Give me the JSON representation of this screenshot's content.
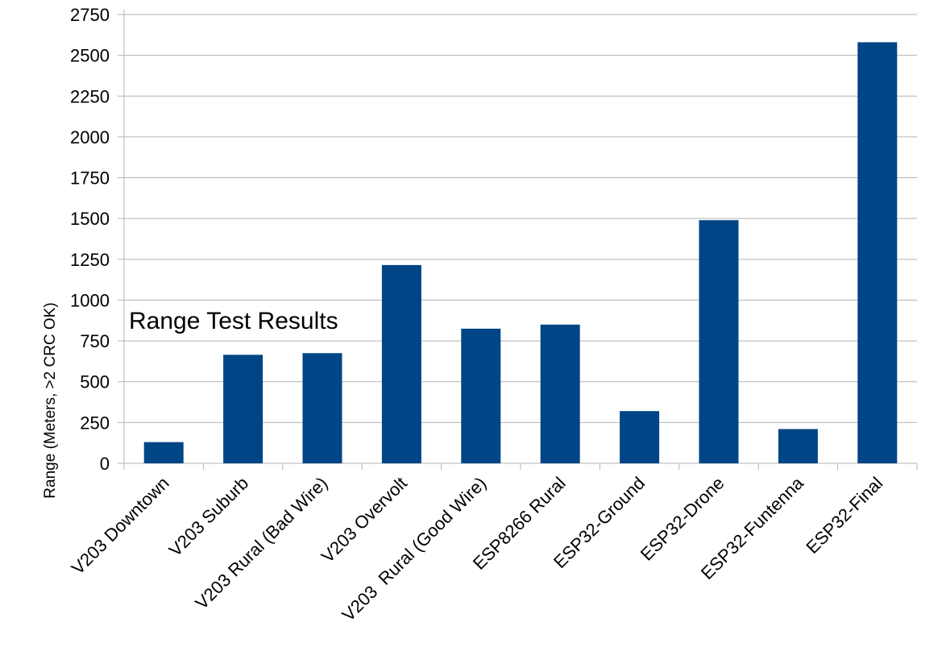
{
  "chart_data": {
    "type": "bar",
    "title": "Range Test Results",
    "xlabel": "",
    "ylabel": "Range (Meters, >2 CRC OK)",
    "categories": [
      "V203 Downtown",
      "V203 Suburb",
      "V203 Rural (Bad Wire)",
      "V203 Overvolt",
      "V203  Rural (Good Wire)",
      "ESP8266 Rural",
      "ESP32-Ground",
      "ESP32-Drone",
      "ESP32-Funtenna",
      "ESP32-Final"
    ],
    "values": [
      130,
      665,
      675,
      1215,
      825,
      850,
      320,
      1490,
      210,
      2580
    ],
    "ylim": [
      0,
      2750
    ],
    "yticks": [
      0,
      250,
      500,
      750,
      1000,
      1250,
      1500,
      1750,
      2000,
      2250,
      2500,
      2750
    ],
    "grid": true,
    "bar_color": "#004586",
    "grid_color": "#b3b3b3"
  }
}
